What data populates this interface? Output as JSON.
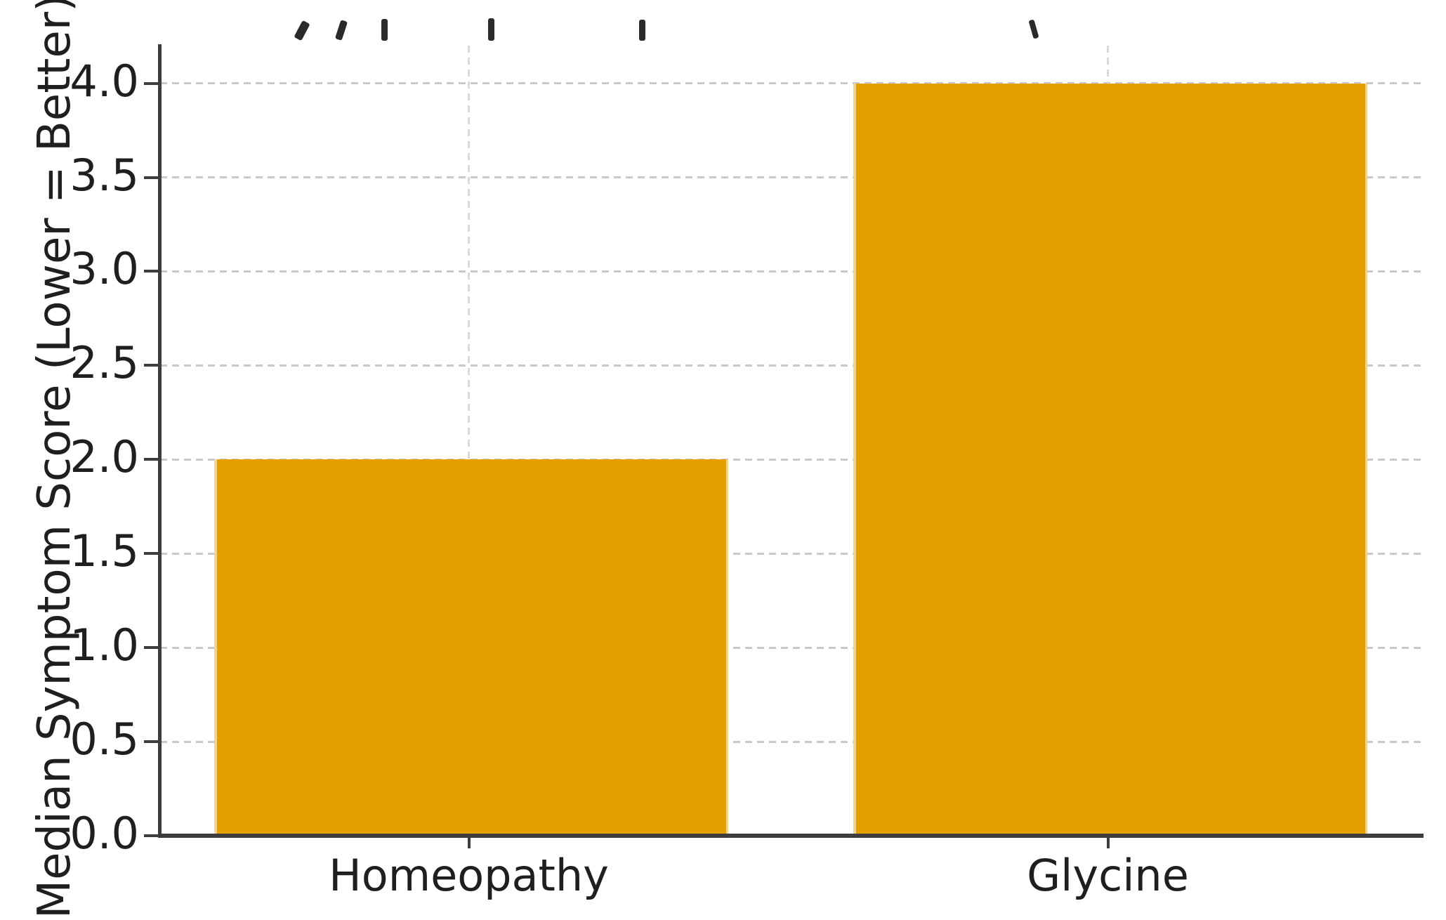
{
  "chart_data": {
    "type": "bar",
    "categories": [
      "Homeopathy",
      "Glycine"
    ],
    "values": [
      2.0,
      4.0
    ],
    "ylabel": "Median Symptom Score (Lower = Better)",
    "xlabel": "",
    "ytick_labels": [
      "0.0",
      "0.5",
      "1.0",
      "1.5",
      "2.0",
      "2.5",
      "3.0",
      "3.5",
      "4.0"
    ],
    "ytick_values": [
      0,
      0.5,
      1,
      1.5,
      2,
      2.5,
      3,
      3.5,
      4
    ],
    "ylim": [
      0,
      4.2
    ],
    "grid": "on",
    "grid_style": "dashed",
    "legend": "none",
    "title_visible_text": "",
    "colors": {
      "bar": "#E69F00",
      "bar_edge_light": "#F6D387",
      "axis": "#3d3d3d",
      "grid_h": "#c9c9c9",
      "grid_v": "#d9d9d9",
      "text": "#1f1f1f"
    }
  }
}
